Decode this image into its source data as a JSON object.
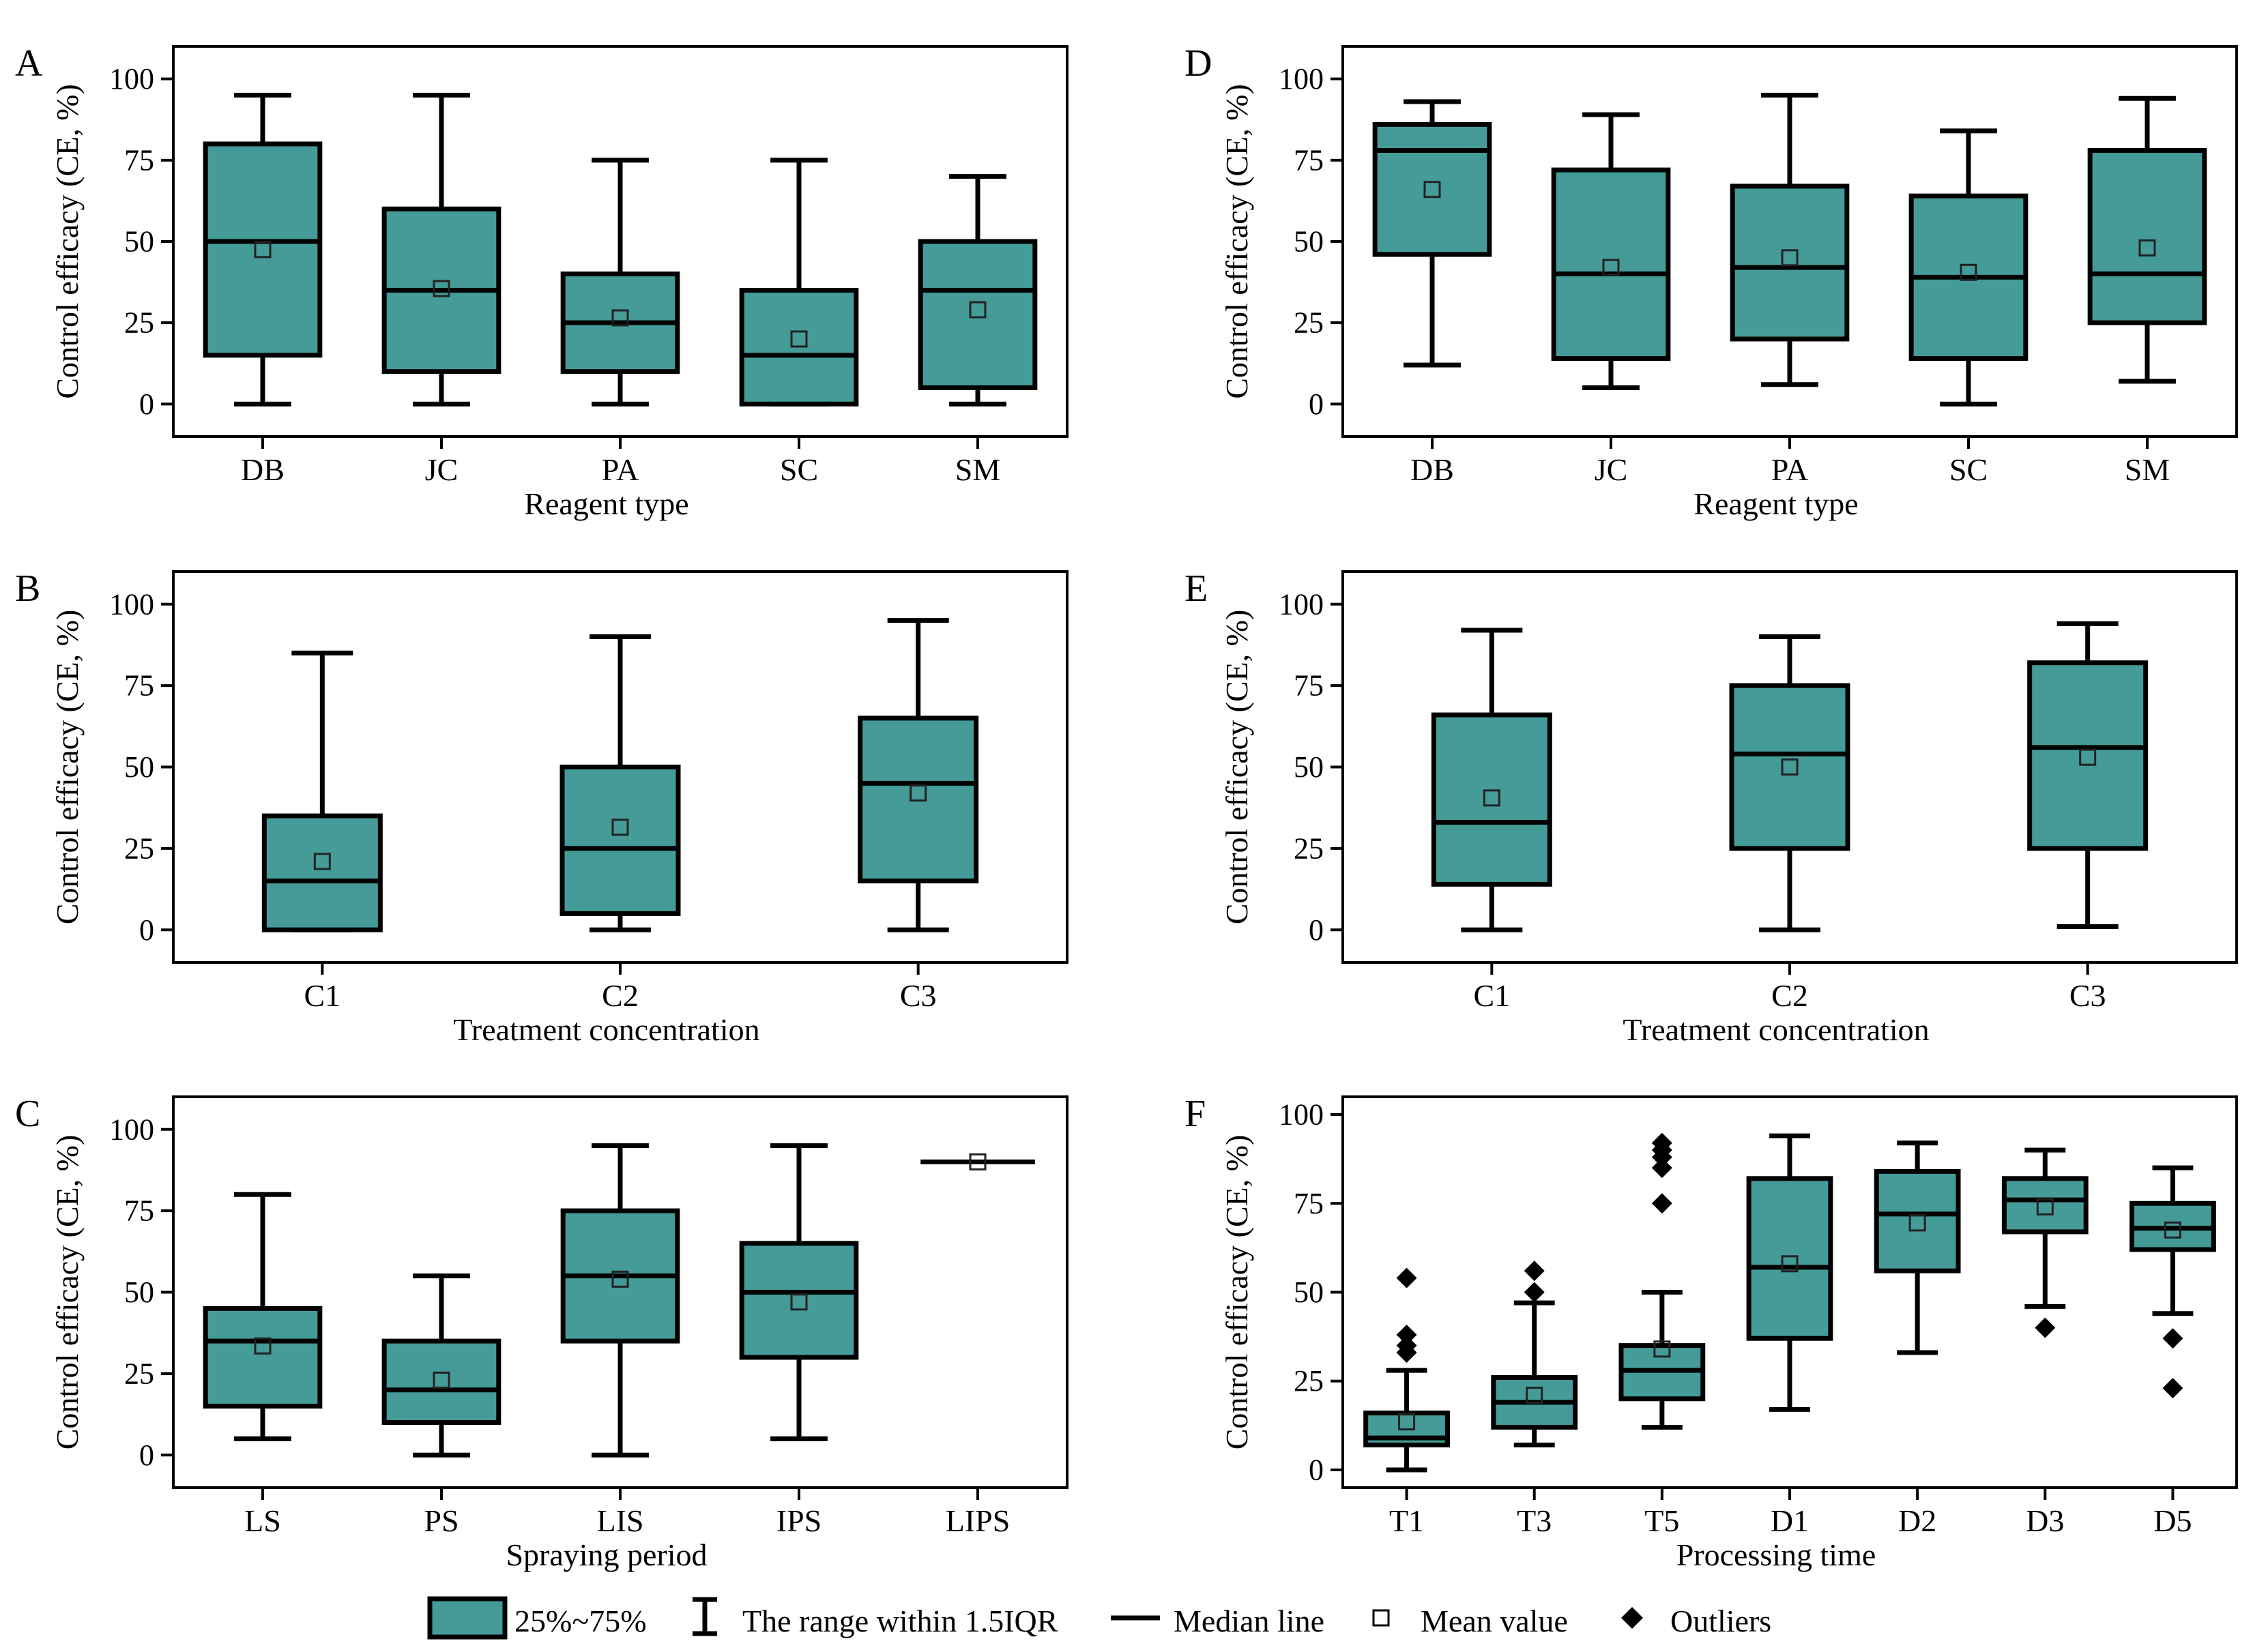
{
  "colors": {
    "box_fill": "#449B98",
    "stroke": "#000000",
    "background": "#ffffff"
  },
  "chart_data": [
    {
      "panel": "A",
      "type": "box",
      "xlabel": "Reagent type",
      "ylabel": "Control efficacy (CE, %)",
      "ylim": [
        -10,
        110
      ],
      "yticks": [
        0,
        25,
        50,
        75,
        100
      ],
      "categories": [
        "DB",
        "JC",
        "PA",
        "SC",
        "SM"
      ],
      "boxes": [
        {
          "min": 0,
          "q1": 15,
          "median": 50,
          "q3": 80,
          "max": 95,
          "mean": 47.5,
          "outliers": []
        },
        {
          "min": 0,
          "q1": 10,
          "median": 35,
          "q3": 60,
          "max": 95,
          "mean": 35.5,
          "outliers": []
        },
        {
          "min": 0,
          "q1": 10,
          "median": 25,
          "q3": 40,
          "max": 75,
          "mean": 26.5,
          "outliers": []
        },
        {
          "min": 0,
          "q1": 0,
          "median": 15,
          "q3": 35,
          "max": 75,
          "mean": 20,
          "outliers": []
        },
        {
          "min": 0,
          "q1": 5,
          "median": 35,
          "q3": 50,
          "max": 70,
          "mean": 29,
          "outliers": []
        }
      ]
    },
    {
      "panel": "B",
      "type": "box",
      "xlabel": "Treatment concentration",
      "ylabel": "Control efficacy (CE, %)",
      "ylim": [
        -10,
        110
      ],
      "yticks": [
        0,
        25,
        50,
        75,
        100
      ],
      "categories": [
        "C1",
        "C2",
        "C3"
      ],
      "boxes": [
        {
          "min": 0,
          "q1": 0,
          "median": 15,
          "q3": 35,
          "max": 85,
          "mean": 21,
          "outliers": []
        },
        {
          "min": 0,
          "q1": 5,
          "median": 25,
          "q3": 50,
          "max": 90,
          "mean": 31.5,
          "outliers": []
        },
        {
          "min": 0,
          "q1": 15,
          "median": 45,
          "q3": 65,
          "max": 95,
          "mean": 42,
          "outliers": []
        }
      ]
    },
    {
      "panel": "C",
      "type": "box",
      "xlabel": "Spraying period",
      "ylabel": "Control efficacy (CE, %)",
      "ylim": [
        -10,
        110
      ],
      "yticks": [
        0,
        25,
        50,
        75,
        100
      ],
      "categories": [
        "LS",
        "PS",
        "LIS",
        "IPS",
        "LIPS"
      ],
      "boxes": [
        {
          "min": 5,
          "q1": 15,
          "median": 35,
          "q3": 45,
          "max": 80,
          "mean": 33.5,
          "outliers": []
        },
        {
          "min": 0,
          "q1": 10,
          "median": 20,
          "q3": 35,
          "max": 55,
          "mean": 23,
          "outliers": []
        },
        {
          "min": 0,
          "q1": 35,
          "median": 55,
          "q3": 75,
          "max": 95,
          "mean": 54,
          "outliers": []
        },
        {
          "min": 5,
          "q1": 30,
          "median": 50,
          "q3": 65,
          "max": 95,
          "mean": 47,
          "outliers": []
        },
        {
          "min": 90,
          "q1": 90,
          "median": 90,
          "q3": 90,
          "max": 90,
          "mean": 90,
          "outliers": []
        }
      ]
    },
    {
      "panel": "D",
      "type": "box",
      "xlabel": "Reagent type",
      "ylabel": "Control efficacy (CE, %)",
      "ylim": [
        -10,
        110
      ],
      "yticks": [
        0,
        25,
        50,
        75,
        100
      ],
      "categories": [
        "DB",
        "JC",
        "PA",
        "SC",
        "SM"
      ],
      "boxes": [
        {
          "min": 12,
          "q1": 46,
          "median": 78,
          "q3": 86,
          "max": 93,
          "mean": 66,
          "outliers": []
        },
        {
          "min": 5,
          "q1": 14,
          "median": 40,
          "q3": 72,
          "max": 89,
          "mean": 42,
          "outliers": []
        },
        {
          "min": 6,
          "q1": 20,
          "median": 42,
          "q3": 67,
          "max": 95,
          "mean": 45,
          "outliers": []
        },
        {
          "min": 0,
          "q1": 14,
          "median": 39,
          "q3": 64,
          "max": 84,
          "mean": 40.5,
          "outliers": []
        },
        {
          "min": 7,
          "q1": 25,
          "median": 40,
          "q3": 78,
          "max": 94,
          "mean": 48,
          "outliers": []
        }
      ]
    },
    {
      "panel": "E",
      "type": "box",
      "xlabel": "Treatment concentration",
      "ylabel": "Control efficacy (CE, %)",
      "ylim": [
        -10,
        110
      ],
      "yticks": [
        0,
        25,
        50,
        75,
        100
      ],
      "categories": [
        "C1",
        "C2",
        "C3"
      ],
      "boxes": [
        {
          "min": 0,
          "q1": 14,
          "median": 33,
          "q3": 66,
          "max": 92,
          "mean": 40.5,
          "outliers": []
        },
        {
          "min": 0,
          "q1": 25,
          "median": 54,
          "q3": 75,
          "max": 90,
          "mean": 50,
          "outliers": []
        },
        {
          "min": 1,
          "q1": 25,
          "median": 56,
          "q3": 82,
          "max": 94,
          "mean": 53,
          "outliers": []
        }
      ]
    },
    {
      "panel": "F",
      "type": "box",
      "xlabel": "Processing time",
      "ylabel": "Control efficacy (CE, %)",
      "ylim": [
        -5,
        105
      ],
      "yticks": [
        0,
        25,
        50,
        75,
        100
      ],
      "categories": [
        "T1",
        "T3",
        "T5",
        "D1",
        "D2",
        "D3",
        "D5"
      ],
      "boxes": [
        {
          "min": 0,
          "q1": 7,
          "median": 9,
          "q3": 16,
          "max": 28,
          "mean": 13.5,
          "outliers": [
            33,
            35,
            38,
            54
          ]
        },
        {
          "min": 7,
          "q1": 12,
          "median": 19,
          "q3": 26,
          "max": 47,
          "mean": 21,
          "outliers": [
            50,
            56
          ]
        },
        {
          "min": 12,
          "q1": 20,
          "median": 28,
          "q3": 35,
          "max": 50,
          "mean": 34,
          "outliers": [
            75,
            85,
            88,
            90,
            92
          ]
        },
        {
          "min": 17,
          "q1": 37,
          "median": 57,
          "q3": 82,
          "max": 94,
          "mean": 58,
          "outliers": []
        },
        {
          "min": 33,
          "q1": 56,
          "median": 72,
          "q3": 84,
          "max": 92,
          "mean": 69.5,
          "outliers": []
        },
        {
          "min": 46,
          "q1": 67,
          "median": 76,
          "q3": 82,
          "max": 90,
          "mean": 74,
          "outliers": [
            40
          ]
        },
        {
          "min": 44,
          "q1": 62,
          "median": 68,
          "q3": 75,
          "max": 85,
          "mean": 67.5,
          "outliers": [
            23,
            37
          ]
        }
      ]
    }
  ],
  "legend": {
    "iqr": "25%~75%",
    "range": "The range within 1.5IQR",
    "median": "Median line",
    "mean": "Mean value",
    "outliers": "Outliers"
  }
}
